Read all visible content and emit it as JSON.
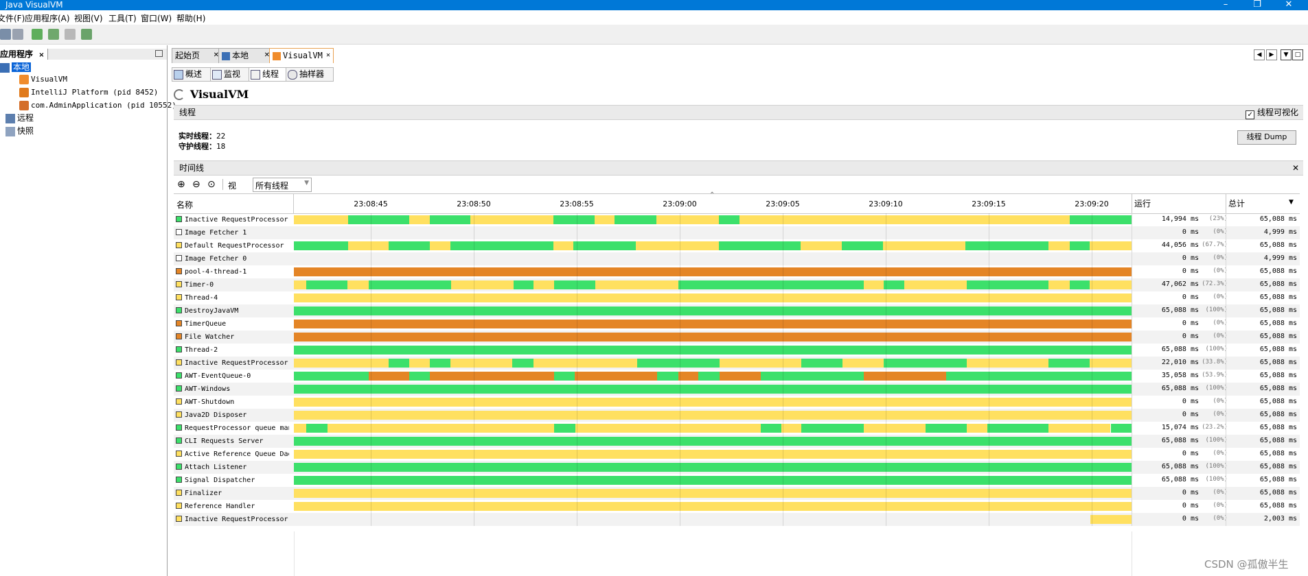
{
  "window": {
    "title": "Java VisualVM"
  },
  "menu": [
    "文件(F)",
    "应用程序(A)",
    "视图(V)",
    "工具(T)",
    "窗口(W)",
    "帮助(H)"
  ],
  "left_panel": {
    "tab_title": "应用程序",
    "local": "本地",
    "apps": [
      "VisualVM",
      "IntelliJ Platform (pid 8452)",
      "com.AdminApplication (pid 10552)"
    ],
    "remote": "远程",
    "snapshots": "快照"
  },
  "doc_tabs": [
    "起始页",
    "本地",
    "VisualVM"
  ],
  "sub_tabs": [
    "概述",
    "监视",
    "线程",
    "抽样器"
  ],
  "app_title": "VisualVM",
  "threads_section": {
    "title": "线程",
    "visualize_label": "线程可视化",
    "visualize_checked": true,
    "live_label": "实时线程：",
    "live_value": "22",
    "daemon_label": "守护线程：",
    "daemon_value": "18",
    "dump_button": "线程 Dump"
  },
  "timeline": {
    "title": "时间线",
    "view_label": "视图:",
    "view_value": "所有线程",
    "col_name": "名称",
    "col_run": "运行",
    "col_total": "总计",
    "ticks": [
      "23:08:45",
      "23:08:50",
      "23:08:55",
      "23:09:00",
      "23:09:05",
      "23:09:10",
      "23:09:15",
      "23:09:20"
    ]
  },
  "colors": {
    "running": "#3ce06b",
    "sleeping": "#ffe060",
    "wait": "#ffe060",
    "park": "#e48526",
    "monitor": "#e84040"
  },
  "threads": [
    {
      "name": "Inactive RequestProcessor thread",
      "color": "#3ce06b",
      "run": "14,994 ms",
      "pct": "(23%)",
      "total": "65,088 ms",
      "segments": [
        [
          "s",
          0,
          0.065
        ],
        [
          "r",
          0.065,
          0.138
        ],
        [
          "s",
          0.138,
          0.162
        ],
        [
          "r",
          0.162,
          0.211
        ],
        [
          "s",
          0.211,
          0.31
        ],
        [
          "r",
          0.31,
          0.359
        ],
        [
          "s",
          0.359,
          0.383
        ],
        [
          "r",
          0.383,
          0.433
        ],
        [
          "s",
          0.433,
          0.507
        ],
        [
          "r",
          0.507,
          0.532
        ],
        [
          "s",
          0.532,
          0.926
        ],
        [
          "r",
          0.926,
          1
        ]
      ]
    },
    {
      "name": "Image Fetcher 1",
      "color": "#ffffff",
      "run": "0 ms",
      "pct": "(0%)",
      "total": "4,999 ms",
      "segments": []
    },
    {
      "name": "Default RequestProcessor",
      "color": "#ffe060",
      "run": "44,056 ms",
      "pct": "(67.7%)",
      "total": "65,088 ms",
      "segments": [
        [
          "r",
          0,
          0.065
        ],
        [
          "s",
          0.065,
          0.113
        ],
        [
          "r",
          0.113,
          0.162
        ],
        [
          "s",
          0.162,
          0.187
        ],
        [
          "r",
          0.187,
          0.31
        ],
        [
          "s",
          0.31,
          0.334
        ],
        [
          "r",
          0.334,
          0.408
        ],
        [
          "s",
          0.408,
          0.507
        ],
        [
          "r",
          0.507,
          0.605
        ],
        [
          "s",
          0.605,
          0.654
        ],
        [
          "r",
          0.654,
          0.703
        ],
        [
          "s",
          0.703,
          0.802
        ],
        [
          "r",
          0.802,
          0.901
        ],
        [
          "s",
          0.901,
          0.926
        ],
        [
          "r",
          0.926,
          0.95
        ],
        [
          "s",
          0.95,
          1
        ]
      ]
    },
    {
      "name": "Image Fetcher 0",
      "color": "#ffffff",
      "run": "0 ms",
      "pct": "(0%)",
      "total": "4,999 ms",
      "segments": []
    },
    {
      "name": "pool-4-thread-1",
      "color": "#e48526",
      "run": "0 ms",
      "pct": "(0%)",
      "total": "65,088 ms",
      "segments": [
        [
          "p",
          0,
          1
        ]
      ]
    },
    {
      "name": "Timer-0",
      "color": "#ffe060",
      "run": "47,062 ms",
      "pct": "(72.3%)",
      "total": "65,088 ms",
      "segments": [
        [
          "s",
          0,
          0.015
        ],
        [
          "r",
          0.015,
          0.064
        ],
        [
          "s",
          0.064,
          0.089
        ],
        [
          "r",
          0.089,
          0.188
        ],
        [
          "s",
          0.188,
          0.262
        ],
        [
          "r",
          0.262,
          0.286
        ],
        [
          "s",
          0.286,
          0.311
        ],
        [
          "r",
          0.311,
          0.36
        ],
        [
          "s",
          0.36,
          0.459
        ],
        [
          "r",
          0.459,
          0.68
        ],
        [
          "s",
          0.68,
          0.704
        ],
        [
          "r",
          0.704,
          0.729
        ],
        [
          "s",
          0.729,
          0.803
        ],
        [
          "r",
          0.803,
          0.901
        ],
        [
          "s",
          0.901,
          0.926
        ],
        [
          "r",
          0.926,
          0.95
        ],
        [
          "s",
          0.95,
          1
        ]
      ]
    },
    {
      "name": "Thread-4",
      "color": "#ffe060",
      "run": "0 ms",
      "pct": "(0%)",
      "total": "65,088 ms",
      "segments": [
        [
          "s",
          0,
          1
        ]
      ]
    },
    {
      "name": "DestroyJavaVM",
      "color": "#3ce06b",
      "run": "65,088 ms",
      "pct": "(100%)",
      "total": "65,088 ms",
      "segments": [
        [
          "r",
          0,
          1
        ]
      ]
    },
    {
      "name": "TimerQueue",
      "color": "#e48526",
      "run": "0 ms",
      "pct": "(0%)",
      "total": "65,088 ms",
      "segments": [
        [
          "p",
          0,
          1
        ]
      ]
    },
    {
      "name": "File Watcher",
      "color": "#e48526",
      "run": "0 ms",
      "pct": "(0%)",
      "total": "65,088 ms",
      "segments": [
        [
          "p",
          0,
          1
        ]
      ]
    },
    {
      "name": "Thread-2",
      "color": "#3ce06b",
      "run": "65,088 ms",
      "pct": "(100%)",
      "total": "65,088 ms",
      "segments": [
        [
          "r",
          0,
          1
        ]
      ]
    },
    {
      "name": "Inactive RequestProcessor thread",
      "color": "#ffe060",
      "run": "22,010 ms",
      "pct": "(33.8%)",
      "total": "65,088 ms",
      "segments": [
        [
          "s",
          0,
          0.113
        ],
        [
          "r",
          0.113,
          0.138
        ],
        [
          "s",
          0.138,
          0.162
        ],
        [
          "r",
          0.162,
          0.187
        ],
        [
          "s",
          0.187,
          0.261
        ],
        [
          "r",
          0.261,
          0.286
        ],
        [
          "s",
          0.286,
          0.41
        ],
        [
          "r",
          0.41,
          0.508
        ],
        [
          "s",
          0.508,
          0.606
        ],
        [
          "r",
          0.606,
          0.655
        ],
        [
          "s",
          0.655,
          0.704
        ],
        [
          "r",
          0.704,
          0.803
        ],
        [
          "s",
          0.803,
          0.901
        ],
        [
          "r",
          0.901,
          0.95
        ],
        [
          "s",
          0.95,
          1
        ]
      ]
    },
    {
      "name": "AWT-EventQueue-0",
      "color": "#3ce06b",
      "run": "35,058 ms",
      "pct": "(53.9%)",
      "total": "65,088 ms",
      "segments": [
        [
          "r",
          0,
          0.089
        ],
        [
          "p",
          0.089,
          0.138
        ],
        [
          "r",
          0.138,
          0.162
        ],
        [
          "p",
          0.162,
          0.311
        ],
        [
          "r",
          0.311,
          0.335
        ],
        [
          "p",
          0.335,
          0.434
        ],
        [
          "r",
          0.434,
          0.459
        ],
        [
          "p",
          0.459,
          0.483
        ],
        [
          "r",
          0.483,
          0.508
        ],
        [
          "p",
          0.508,
          0.557
        ],
        [
          "r",
          0.557,
          0.68
        ],
        [
          "p",
          0.68,
          0.779
        ],
        [
          "r",
          0.779,
          1
        ]
      ]
    },
    {
      "name": "AWT-Windows",
      "color": "#3ce06b",
      "run": "65,088 ms",
      "pct": "(100%)",
      "total": "65,088 ms",
      "segments": [
        [
          "r",
          0,
          1
        ]
      ]
    },
    {
      "name": "AWT-Shutdown",
      "color": "#ffe060",
      "run": "0 ms",
      "pct": "(0%)",
      "total": "65,088 ms",
      "segments": [
        [
          "s",
          0,
          1
        ]
      ]
    },
    {
      "name": "Java2D Disposer",
      "color": "#ffe060",
      "run": "0 ms",
      "pct": "(0%)",
      "total": "65,088 ms",
      "segments": [
        [
          "s",
          0,
          1
        ]
      ]
    },
    {
      "name": "RequestProcessor queue manager",
      "color": "#3ce06b",
      "run": "15,074 ms",
      "pct": "(23.2%)",
      "total": "65,088 ms",
      "segments": [
        [
          "s",
          0,
          0.015
        ],
        [
          "r",
          0.015,
          0.04
        ],
        [
          "s",
          0.04,
          0.311
        ],
        [
          "r",
          0.311,
          0.336
        ],
        [
          "s",
          0.336,
          0.557
        ],
        [
          "r",
          0.557,
          0.582
        ],
        [
          "s",
          0.582,
          0.606
        ],
        [
          "r",
          0.606,
          0.68
        ],
        [
          "s",
          0.68,
          0.754
        ],
        [
          "r",
          0.754,
          0.803
        ],
        [
          "s",
          0.803,
          0.828
        ],
        [
          "r",
          0.828,
          0.901
        ],
        [
          "s",
          0.901,
          0.975
        ],
        [
          "r",
          0.975,
          1
        ]
      ]
    },
    {
      "name": "CLI Requests Server",
      "color": "#3ce06b",
      "run": "65,088 ms",
      "pct": "(100%)",
      "total": "65,088 ms",
      "segments": [
        [
          "r",
          0,
          1
        ]
      ]
    },
    {
      "name": "Active Reference Queue Daemon",
      "color": "#ffe060",
      "run": "0 ms",
      "pct": "(0%)",
      "total": "65,088 ms",
      "segments": [
        [
          "s",
          0,
          1
        ]
      ]
    },
    {
      "name": "Attach Listener",
      "color": "#3ce06b",
      "run": "65,088 ms",
      "pct": "(100%)",
      "total": "65,088 ms",
      "segments": [
        [
          "r",
          0,
          1
        ]
      ]
    },
    {
      "name": "Signal Dispatcher",
      "color": "#3ce06b",
      "run": "65,088 ms",
      "pct": "(100%)",
      "total": "65,088 ms",
      "segments": [
        [
          "r",
          0,
          1
        ]
      ]
    },
    {
      "name": "Finalizer",
      "color": "#ffe060",
      "run": "0 ms",
      "pct": "(0%)",
      "total": "65,088 ms",
      "segments": [
        [
          "s",
          0,
          1
        ]
      ]
    },
    {
      "name": "Reference Handler",
      "color": "#ffe060",
      "run": "0 ms",
      "pct": "(0%)",
      "total": "65,088 ms",
      "segments": [
        [
          "s",
          0,
          1
        ]
      ]
    },
    {
      "name": "Inactive RequestProcessor thread",
      "color": "#ffe060",
      "run": "0 ms",
      "pct": "(0%)",
      "total": "2,003 ms",
      "segments": [
        [
          "s",
          0.951,
          1
        ]
      ]
    }
  ],
  "watermark": "CSDN @孤傲半生"
}
